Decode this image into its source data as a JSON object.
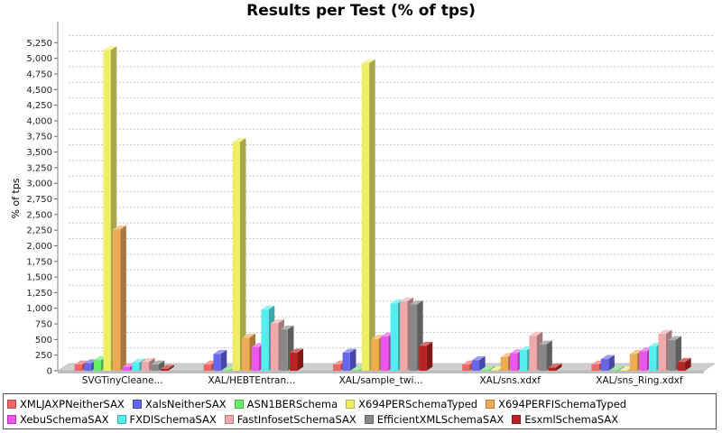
{
  "chart_data": {
    "type": "bar",
    "title": "Results per Test (% of tps)",
    "ylabel": "% of tps",
    "xlabel": "",
    "ylim": [
      0,
      5500
    ],
    "yticks": [
      0,
      250,
      500,
      750,
      1000,
      1250,
      1500,
      1750,
      2000,
      2250,
      2500,
      2750,
      3000,
      3250,
      3500,
      3750,
      4000,
      4250,
      4500,
      4750,
      5000,
      5250
    ],
    "ytick_labels": [
      "0",
      "250",
      "500",
      "750",
      "1,000",
      "1,250",
      "1,500",
      "1,750",
      "2,000",
      "2,250",
      "2,500",
      "2,750",
      "3,000",
      "3,250",
      "3,500",
      "3,750",
      "4,000",
      "4,250",
      "4,500",
      "4,750",
      "5,000",
      "5,250"
    ],
    "grid": true,
    "legend_position": "bottom",
    "categories": [
      "SVGTinyCleane...",
      "XAL/HEBTEntran...",
      "XAL/sample_twi...",
      "XAL/sns.xdxf",
      "XAL/sns_Ring.xdxf"
    ],
    "series": [
      {
        "name": "XMLJAXPNeitherSAX",
        "color": "#ee6666",
        "values": [
          100,
          100,
          100,
          100,
          100
        ]
      },
      {
        "name": "XalsNeitherSAX",
        "color": "#6666ee",
        "values": [
          120,
          270,
          290,
          170,
          190
        ]
      },
      {
        "name": "ASN1BERSchema",
        "color": "#66ee66",
        "values": [
          170,
          10,
          10,
          10,
          10
        ]
      },
      {
        "name": "X694PERSchemaTyped",
        "color": "#eeee66",
        "values": [
          5130,
          3660,
          4920,
          10,
          10
        ]
      },
      {
        "name": "X694PERFISchemaTyped",
        "color": "#eeaa55",
        "values": [
          2260,
          530,
          510,
          220,
          270
        ]
      },
      {
        "name": "XebuSchemaSAX",
        "color": "#ee55ee",
        "values": [
          60,
          380,
          550,
          280,
          310
        ]
      },
      {
        "name": "FXDISchemaSAX",
        "color": "#55eeee",
        "values": [
          130,
          980,
          1080,
          330,
          390
        ]
      },
      {
        "name": "FastInfosetSchemaSAX",
        "color": "#eeaaaa",
        "values": [
          140,
          760,
          1110,
          560,
          590
        ]
      },
      {
        "name": "EfficientXMLSchemaSAX",
        "color": "#888888",
        "values": [
          100,
          660,
          1060,
          420,
          490
        ]
      },
      {
        "name": "EsxmlSchemaSAX",
        "color": "#bb2222",
        "values": [
          30,
          290,
          400,
          50,
          140
        ]
      }
    ]
  }
}
